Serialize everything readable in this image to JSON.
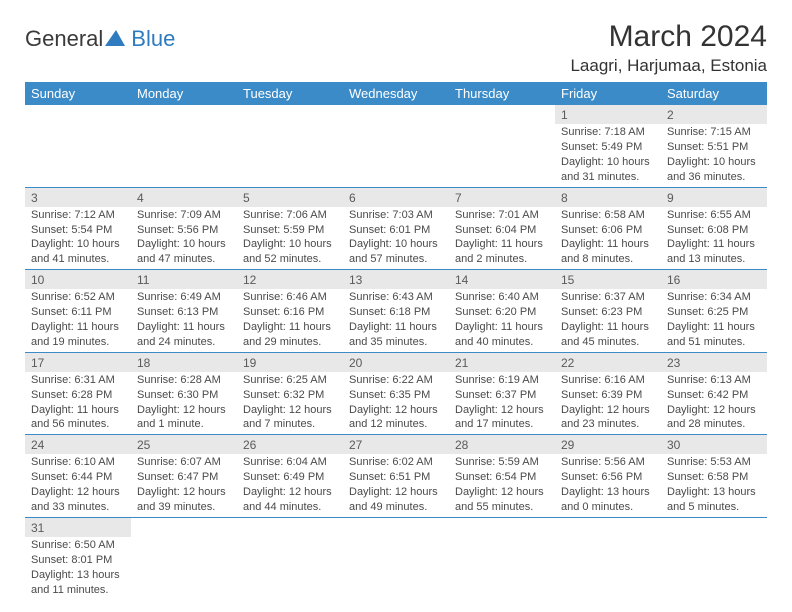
{
  "logo": {
    "textA": "General",
    "textB": "Blue"
  },
  "title": "March 2024",
  "location": "Laagri, Harjumaa, Estonia",
  "columns": [
    "Sunday",
    "Monday",
    "Tuesday",
    "Wednesday",
    "Thursday",
    "Friday",
    "Saturday"
  ],
  "colors": {
    "header_bg": "#3b8bc8",
    "header_text": "#ffffff",
    "daynum_bg": "#e8e8e8",
    "cell_border": "#3b8bc8",
    "text": "#333333",
    "logo_blue": "#2f7bbf"
  },
  "weeks": [
    [
      null,
      null,
      null,
      null,
      null,
      {
        "n": "1",
        "sr": "7:18 AM",
        "ss": "5:49 PM",
        "dl": "10 hours and 31 minutes."
      },
      {
        "n": "2",
        "sr": "7:15 AM",
        "ss": "5:51 PM",
        "dl": "10 hours and 36 minutes."
      }
    ],
    [
      {
        "n": "3",
        "sr": "7:12 AM",
        "ss": "5:54 PM",
        "dl": "10 hours and 41 minutes."
      },
      {
        "n": "4",
        "sr": "7:09 AM",
        "ss": "5:56 PM",
        "dl": "10 hours and 47 minutes."
      },
      {
        "n": "5",
        "sr": "7:06 AM",
        "ss": "5:59 PM",
        "dl": "10 hours and 52 minutes."
      },
      {
        "n": "6",
        "sr": "7:03 AM",
        "ss": "6:01 PM",
        "dl": "10 hours and 57 minutes."
      },
      {
        "n": "7",
        "sr": "7:01 AM",
        "ss": "6:04 PM",
        "dl": "11 hours and 2 minutes."
      },
      {
        "n": "8",
        "sr": "6:58 AM",
        "ss": "6:06 PM",
        "dl": "11 hours and 8 minutes."
      },
      {
        "n": "9",
        "sr": "6:55 AM",
        "ss": "6:08 PM",
        "dl": "11 hours and 13 minutes."
      }
    ],
    [
      {
        "n": "10",
        "sr": "6:52 AM",
        "ss": "6:11 PM",
        "dl": "11 hours and 19 minutes."
      },
      {
        "n": "11",
        "sr": "6:49 AM",
        "ss": "6:13 PM",
        "dl": "11 hours and 24 minutes."
      },
      {
        "n": "12",
        "sr": "6:46 AM",
        "ss": "6:16 PM",
        "dl": "11 hours and 29 minutes."
      },
      {
        "n": "13",
        "sr": "6:43 AM",
        "ss": "6:18 PM",
        "dl": "11 hours and 35 minutes."
      },
      {
        "n": "14",
        "sr": "6:40 AM",
        "ss": "6:20 PM",
        "dl": "11 hours and 40 minutes."
      },
      {
        "n": "15",
        "sr": "6:37 AM",
        "ss": "6:23 PM",
        "dl": "11 hours and 45 minutes."
      },
      {
        "n": "16",
        "sr": "6:34 AM",
        "ss": "6:25 PM",
        "dl": "11 hours and 51 minutes."
      }
    ],
    [
      {
        "n": "17",
        "sr": "6:31 AM",
        "ss": "6:28 PM",
        "dl": "11 hours and 56 minutes."
      },
      {
        "n": "18",
        "sr": "6:28 AM",
        "ss": "6:30 PM",
        "dl": "12 hours and 1 minute."
      },
      {
        "n": "19",
        "sr": "6:25 AM",
        "ss": "6:32 PM",
        "dl": "12 hours and 7 minutes."
      },
      {
        "n": "20",
        "sr": "6:22 AM",
        "ss": "6:35 PM",
        "dl": "12 hours and 12 minutes."
      },
      {
        "n": "21",
        "sr": "6:19 AM",
        "ss": "6:37 PM",
        "dl": "12 hours and 17 minutes."
      },
      {
        "n": "22",
        "sr": "6:16 AM",
        "ss": "6:39 PM",
        "dl": "12 hours and 23 minutes."
      },
      {
        "n": "23",
        "sr": "6:13 AM",
        "ss": "6:42 PM",
        "dl": "12 hours and 28 minutes."
      }
    ],
    [
      {
        "n": "24",
        "sr": "6:10 AM",
        "ss": "6:44 PM",
        "dl": "12 hours and 33 minutes."
      },
      {
        "n": "25",
        "sr": "6:07 AM",
        "ss": "6:47 PM",
        "dl": "12 hours and 39 minutes."
      },
      {
        "n": "26",
        "sr": "6:04 AM",
        "ss": "6:49 PM",
        "dl": "12 hours and 44 minutes."
      },
      {
        "n": "27",
        "sr": "6:02 AM",
        "ss": "6:51 PM",
        "dl": "12 hours and 49 minutes."
      },
      {
        "n": "28",
        "sr": "5:59 AM",
        "ss": "6:54 PM",
        "dl": "12 hours and 55 minutes."
      },
      {
        "n": "29",
        "sr": "5:56 AM",
        "ss": "6:56 PM",
        "dl": "13 hours and 0 minutes."
      },
      {
        "n": "30",
        "sr": "5:53 AM",
        "ss": "6:58 PM",
        "dl": "13 hours and 5 minutes."
      }
    ],
    [
      {
        "n": "31",
        "sr": "6:50 AM",
        "ss": "8:01 PM",
        "dl": "13 hours and 11 minutes."
      },
      null,
      null,
      null,
      null,
      null,
      null
    ]
  ],
  "labels": {
    "sunrise": "Sunrise: ",
    "sunset": "Sunset: ",
    "daylight": "Daylight: "
  }
}
